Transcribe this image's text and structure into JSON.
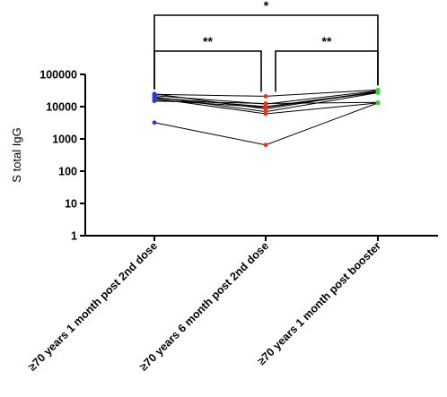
{
  "chart_data": {
    "type": "line",
    "title": "",
    "xlabel": "",
    "ylabel": "S total IgG",
    "yscale": "log",
    "ylim": [
      1,
      100000
    ],
    "y_ticks": [
      1,
      10,
      100,
      1000,
      10000,
      100000
    ],
    "y_tick_labels": [
      "1",
      "10",
      "100",
      "1000",
      "10000",
      "100000"
    ],
    "categories": [
      "≥70 years 1 month post 2nd dose",
      "≥70 years 6 month post 2nd dose",
      "≥70 years 1 month post booster"
    ],
    "category_colors": [
      "#1f3fd6",
      "#e8341c",
      "#2fd12f"
    ],
    "series": [
      {
        "values": [
          25000,
          8500,
          30000
        ]
      },
      {
        "values": [
          24000,
          21000,
          33000
        ]
      },
      {
        "values": [
          22000,
          12000,
          31000
        ]
      },
      {
        "values": [
          20000,
          7000,
          27000
        ]
      },
      {
        "values": [
          19000,
          10000,
          29000
        ]
      },
      {
        "values": [
          18000,
          6000,
          13000
        ]
      },
      {
        "values": [
          16000,
          9500,
          28000
        ]
      },
      {
        "values": [
          15000,
          12500,
          13500
        ]
      },
      {
        "values": [
          3200,
          650,
          13000
        ]
      }
    ],
    "significance": [
      {
        "from": 0,
        "to": 1,
        "label": "**",
        "level": 1
      },
      {
        "from": 1,
        "to": 2,
        "label": "**",
        "level": 1
      },
      {
        "from": 0,
        "to": 2,
        "label": "*",
        "level": 2
      }
    ]
  }
}
